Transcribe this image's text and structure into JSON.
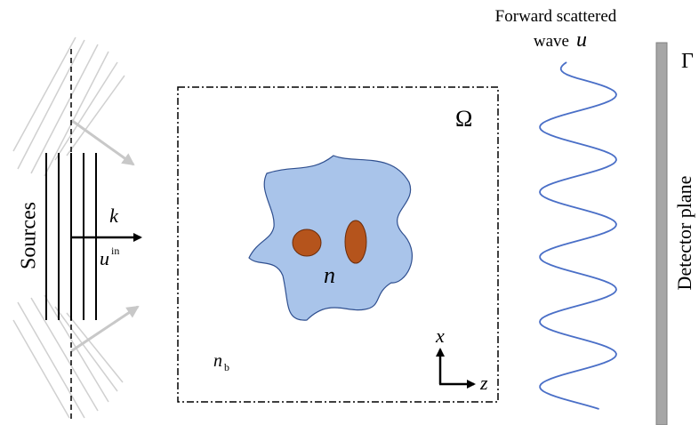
{
  "labels": {
    "sources": "Sources",
    "wave_vector": "k",
    "incident_field": "u",
    "incident_superscript": "in",
    "domain": "Ω",
    "object_index": "n",
    "background_index_base": "n",
    "background_index_subscript": "b",
    "x_axis": "x",
    "z_axis": "z",
    "scattered_title_line1": "Forward scattered",
    "scattered_title_line2": "wave",
    "scattered_symbol": "u",
    "detector": "Detector plane",
    "boundary": "Γ"
  }
}
